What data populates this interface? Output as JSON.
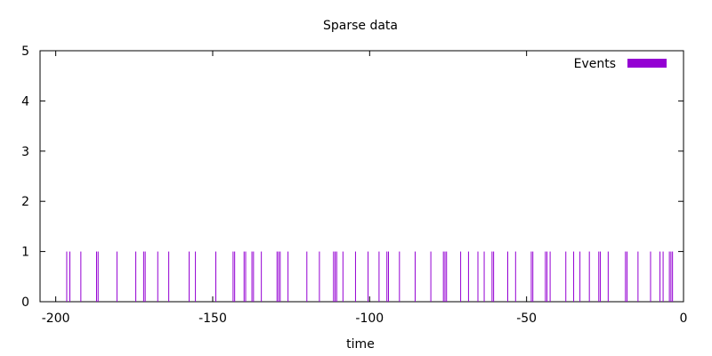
{
  "chart_data": {
    "type": "bar",
    "title": "Sparse data",
    "xlabel": "time",
    "ylabel": "",
    "xlim": [
      -205,
      0
    ],
    "ylim": [
      0,
      5
    ],
    "xticks": [
      -200,
      -150,
      -100,
      -50,
      0
    ],
    "yticks": [
      0,
      1,
      2,
      3,
      4,
      5
    ],
    "grid": false,
    "legend_position": "top-right",
    "series": [
      {
        "name": "Events",
        "color": "#9400d3",
        "x": [
          -196.5,
          -195.5,
          -192.0,
          -187.0,
          -186.5,
          -180.5,
          -174.5,
          -172.0,
          -171.5,
          -167.5,
          -164.0,
          -157.5,
          -155.5,
          -149.0,
          -143.5,
          -143.0,
          -140.0,
          -139.5,
          -137.5,
          -137.0,
          -134.5,
          -129.5,
          -129.0,
          -128.5,
          -126.0,
          -120.0,
          -116.0,
          -111.5,
          -111.0,
          -110.5,
          -108.5,
          -104.5,
          -100.5,
          -97.0,
          -94.5,
          -94.0,
          -90.5,
          -85.5,
          -80.5,
          -76.5,
          -76.0,
          -75.5,
          -71.0,
          -68.5,
          -65.5,
          -63.5,
          -61.0,
          -60.5,
          -56.0,
          -53.5,
          -48.5,
          -48.0,
          -44.0,
          -43.5,
          -42.5,
          -37.5,
          -35.0,
          -33.0,
          -30.0,
          -27.0,
          -26.5,
          -24.0,
          -18.5,
          -18.0,
          -14.5,
          -10.5,
          -7.5,
          -6.5,
          -4.5,
          -4.0,
          -3.5
        ],
        "values": [
          1,
          1,
          1,
          1,
          1,
          1,
          1,
          1,
          1,
          1,
          1,
          1,
          1,
          1,
          1,
          1,
          1,
          1,
          1,
          1,
          1,
          1,
          1,
          1,
          1,
          1,
          1,
          1,
          1,
          1,
          1,
          1,
          1,
          1,
          1,
          1,
          1,
          1,
          1,
          1,
          1,
          1,
          1,
          1,
          1,
          1,
          1,
          1,
          1,
          1,
          1,
          1,
          1,
          1,
          1,
          1,
          1,
          1,
          1,
          1,
          1,
          1,
          1,
          1,
          1,
          1,
          1,
          1,
          1,
          1,
          1
        ]
      }
    ]
  }
}
